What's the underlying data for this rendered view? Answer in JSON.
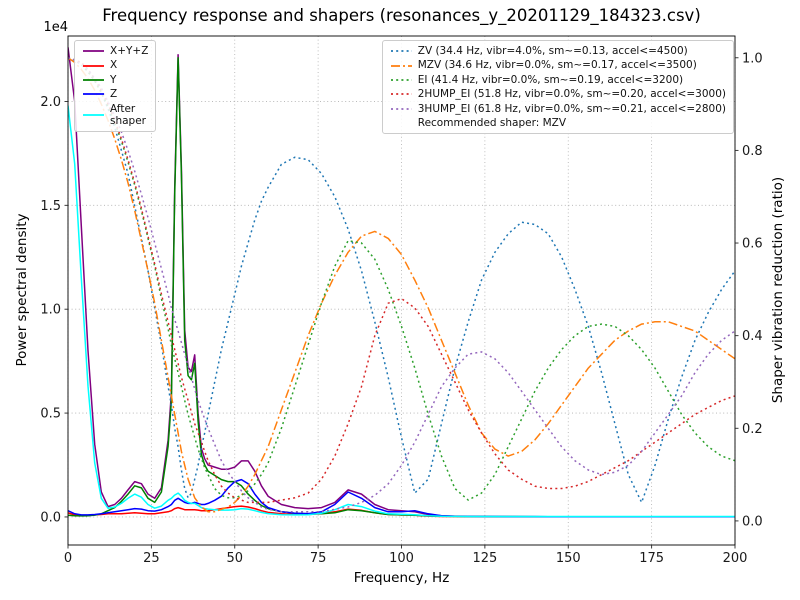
{
  "chart_data": {
    "type": "line",
    "title": "Frequency response and shapers (resonances_y_20201129_184323.csv)",
    "xlabel": "Frequency, Hz",
    "ylabel_left": "Power spectral density",
    "ylabel_right": "Shaper vibration reduction (ratio)",
    "y_left_offset": "1e4",
    "recommended_shaper": "MZV",
    "grid": true,
    "xlim": [
      0,
      200
    ],
    "ylim_left": [
      -1350,
      23150
    ],
    "ylim_right": [
      -0.052,
      1.047
    ],
    "x_ticks": [
      [
        0,
        "0"
      ],
      [
        25,
        "25"
      ],
      [
        50,
        "50"
      ],
      [
        75,
        "75"
      ],
      [
        100,
        "100"
      ],
      [
        125,
        "125"
      ],
      [
        150,
        "150"
      ],
      [
        175,
        "175"
      ],
      [
        200,
        "200"
      ]
    ],
    "y_left_ticks": [
      [
        0,
        "0.0"
      ],
      [
        5000,
        "0.5"
      ],
      [
        10000,
        "1.0"
      ],
      [
        15000,
        "1.5"
      ],
      [
        20000,
        "2.0"
      ]
    ],
    "y_right_ticks": [
      [
        0,
        "0.0"
      ],
      [
        0.2,
        "0.2"
      ],
      [
        0.4,
        "0.4"
      ],
      [
        0.6,
        "0.6"
      ],
      [
        0.8,
        "0.8"
      ],
      [
        1.0,
        "1.0"
      ]
    ],
    "x": [
      0,
      2,
      4,
      6,
      8,
      10,
      12,
      14,
      16,
      18,
      20,
      22,
      24,
      26,
      28,
      30,
      31,
      32,
      33,
      34,
      35,
      36,
      37,
      38,
      39,
      40,
      41,
      42,
      44,
      46,
      48,
      50,
      52,
      54,
      56,
      58,
      60,
      64,
      68,
      72,
      76,
      80,
      84,
      88,
      92,
      96,
      100,
      104,
      108,
      112,
      116,
      120,
      124,
      128,
      132,
      136,
      140,
      144,
      148,
      152,
      156,
      160,
      164,
      168,
      172,
      176,
      180,
      184,
      188,
      192,
      196,
      200
    ],
    "series": [
      {
        "name": "xyz",
        "label": "X+Y+Z",
        "color": "#800080",
        "dash": "solid",
        "axis": "left",
        "values": [
          22600,
          20000,
          14000,
          8000,
          3500,
          1200,
          500,
          600,
          900,
          1300,
          1700,
          1600,
          1100,
          900,
          1400,
          3700,
          6000,
          15800,
          22250,
          16800,
          9000,
          7200,
          7000,
          7800,
          5000,
          3300,
          2800,
          2500,
          2400,
          2300,
          2300,
          2400,
          2700,
          2700,
          2200,
          1500,
          1000,
          600,
          450,
          400,
          450,
          700,
          1300,
          1100,
          600,
          350,
          300,
          250,
          120,
          60,
          40,
          30,
          25,
          20,
          20,
          15,
          15,
          10,
          10,
          10,
          10,
          10,
          10,
          10,
          10,
          10,
          10,
          10,
          10,
          10,
          10,
          10
        ]
      },
      {
        "name": "x",
        "label": "X",
        "color": "#ff0000",
        "dash": "solid",
        "axis": "left",
        "values": [
          200,
          100,
          80,
          80,
          100,
          120,
          150,
          150,
          150,
          180,
          200,
          180,
          150,
          150,
          200,
          250,
          300,
          400,
          450,
          400,
          350,
          350,
          350,
          350,
          330,
          300,
          300,
          300,
          350,
          400,
          450,
          500,
          520,
          480,
          400,
          300,
          220,
          150,
          120,
          120,
          150,
          250,
          380,
          320,
          200,
          120,
          100,
          80,
          40,
          20,
          20,
          15,
          15,
          10,
          10,
          10,
          10,
          10,
          10,
          10,
          10,
          10,
          10,
          10,
          10,
          10,
          10,
          10,
          10,
          10,
          10,
          10
        ]
      },
      {
        "name": "y",
        "label": "Y",
        "color": "#008000",
        "dash": "solid",
        "axis": "left",
        "values": [
          80,
          60,
          50,
          60,
          90,
          150,
          300,
          450,
          750,
          1100,
          1500,
          1400,
          900,
          700,
          1200,
          3400,
          5600,
          15500,
          22100,
          16500,
          8500,
          6800,
          6600,
          7400,
          4600,
          3000,
          2500,
          2200,
          2000,
          1800,
          1700,
          1700,
          1500,
          1100,
          800,
          550,
          400,
          250,
          180,
          150,
          150,
          200,
          350,
          300,
          200,
          120,
          100,
          80,
          50,
          30,
          25,
          20,
          20,
          15,
          15,
          15,
          10,
          10,
          10,
          10,
          10,
          10,
          10,
          10,
          10,
          10,
          10,
          10,
          10,
          10,
          10,
          10
        ]
      },
      {
        "name": "z",
        "label": "Z",
        "color": "#0000ff",
        "dash": "solid",
        "axis": "left",
        "values": [
          300,
          150,
          100,
          100,
          120,
          150,
          200,
          250,
          300,
          350,
          400,
          380,
          300,
          280,
          350,
          500,
          600,
          800,
          900,
          800,
          700,
          650,
          650,
          700,
          650,
          600,
          600,
          650,
          800,
          1000,
          1400,
          1700,
          1800,
          1600,
          1100,
          700,
          450,
          250,
          180,
          160,
          250,
          600,
          1200,
          900,
          450,
          250,
          250,
          300,
          150,
          60,
          30,
          25,
          20,
          20,
          15,
          15,
          15,
          10,
          10,
          10,
          10,
          10,
          10,
          10,
          10,
          10,
          10,
          10,
          10,
          10,
          10,
          10
        ]
      },
      {
        "name": "after-shaper",
        "label": "After\nshaper",
        "color": "#00ffff",
        "dash": "solid",
        "axis": "left",
        "values": [
          19800,
          17000,
          11500,
          6300,
          2600,
          900,
          420,
          480,
          650,
          900,
          1100,
          950,
          600,
          420,
          520,
          800,
          900,
          1050,
          1150,
          1000,
          800,
          700,
          650,
          650,
          550,
          450,
          400,
          380,
          350,
          330,
          330,
          350,
          400,
          380,
          300,
          220,
          160,
          110,
          100,
          110,
          180,
          350,
          600,
          500,
          280,
          150,
          130,
          110,
          60,
          30,
          25,
          20,
          20,
          20,
          20,
          20,
          20,
          20,
          20,
          20,
          20,
          20,
          20,
          20,
          20,
          20,
          20,
          20,
          20,
          20,
          20,
          20
        ]
      },
      {
        "name": "shaper-zv",
        "label": "ZV (34.4 Hz, vibr=4.0%, sm~=0.13, accel<=4500)",
        "color": "#1f77b4",
        "dash": "dotted",
        "axis": "right",
        "values": [
          1.0,
          0.995,
          0.985,
          0.97,
          0.95,
          0.925,
          0.89,
          0.85,
          0.8,
          0.75,
          0.68,
          0.61,
          0.54,
          0.46,
          0.38,
          0.29,
          0.25,
          0.2,
          0.16,
          0.11,
          0.07,
          0.05,
          0.06,
          0.09,
          0.12,
          0.16,
          0.19,
          0.23,
          0.3,
          0.37,
          0.43,
          0.49,
          0.55,
          0.6,
          0.65,
          0.69,
          0.72,
          0.77,
          0.785,
          0.78,
          0.75,
          0.7,
          0.63,
          0.54,
          0.43,
          0.31,
          0.18,
          0.06,
          0.09,
          0.21,
          0.33,
          0.43,
          0.52,
          0.58,
          0.62,
          0.645,
          0.64,
          0.62,
          0.57,
          0.5,
          0.42,
          0.32,
          0.21,
          0.1,
          0.04,
          0.12,
          0.22,
          0.31,
          0.39,
          0.45,
          0.5,
          0.54
        ]
      },
      {
        "name": "shaper-mzv",
        "label": "MZV (34.6 Hz, vibr=0.0%, sm~=0.17, accel<=3500)",
        "color": "#ff7f0e",
        "dash": "dashdot",
        "axis": "right",
        "values": [
          1.0,
          0.99,
          0.975,
          0.955,
          0.93,
          0.9,
          0.865,
          0.825,
          0.78,
          0.73,
          0.67,
          0.605,
          0.54,
          0.47,
          0.39,
          0.31,
          0.27,
          0.23,
          0.19,
          0.15,
          0.12,
          0.09,
          0.07,
          0.05,
          0.04,
          0.03,
          0.025,
          0.02,
          0.02,
          0.025,
          0.03,
          0.04,
          0.055,
          0.075,
          0.1,
          0.13,
          0.16,
          0.24,
          0.32,
          0.4,
          0.47,
          0.53,
          0.58,
          0.615,
          0.625,
          0.61,
          0.575,
          0.52,
          0.46,
          0.39,
          0.32,
          0.25,
          0.19,
          0.155,
          0.14,
          0.15,
          0.175,
          0.21,
          0.25,
          0.29,
          0.33,
          0.36,
          0.39,
          0.41,
          0.425,
          0.43,
          0.43,
          0.42,
          0.41,
          0.39,
          0.37,
          0.35
        ]
      },
      {
        "name": "shaper-ei",
        "label": "EI (41.4 Hz, vibr=0.0%, sm~=0.19, accel<=3200)",
        "color": "#2ca02c",
        "dash": "dotted",
        "axis": "right",
        "values": [
          1.0,
          0.995,
          0.985,
          0.97,
          0.95,
          0.925,
          0.895,
          0.86,
          0.82,
          0.775,
          0.725,
          0.67,
          0.61,
          0.55,
          0.48,
          0.415,
          0.38,
          0.35,
          0.32,
          0.29,
          0.26,
          0.23,
          0.205,
          0.18,
          0.155,
          0.135,
          0.115,
          0.1,
          0.07,
          0.055,
          0.05,
          0.05,
          0.055,
          0.065,
          0.08,
          0.1,
          0.125,
          0.2,
          0.29,
          0.38,
          0.47,
          0.55,
          0.605,
          0.6,
          0.565,
          0.5,
          0.42,
          0.33,
          0.23,
          0.14,
          0.07,
          0.045,
          0.06,
          0.1,
          0.16,
          0.22,
          0.28,
          0.33,
          0.37,
          0.4,
          0.42,
          0.425,
          0.42,
          0.4,
          0.37,
          0.33,
          0.28,
          0.23,
          0.19,
          0.16,
          0.14,
          0.13
        ]
      },
      {
        "name": "shaper-2hump-ei",
        "label": "2HUMP_EI (51.8 Hz, vibr=0.0%, sm~=0.20, accel<=3000)",
        "color": "#d62728",
        "dash": "dotted",
        "axis": "right",
        "values": [
          1.0,
          0.995,
          0.99,
          0.975,
          0.955,
          0.93,
          0.9,
          0.865,
          0.825,
          0.78,
          0.73,
          0.675,
          0.615,
          0.555,
          0.49,
          0.43,
          0.4,
          0.37,
          0.34,
          0.31,
          0.285,
          0.26,
          0.235,
          0.21,
          0.19,
          0.17,
          0.15,
          0.13,
          0.1,
          0.075,
          0.06,
          0.05,
          0.045,
          0.04,
          0.04,
          0.04,
          0.04,
          0.045,
          0.05,
          0.06,
          0.09,
          0.14,
          0.21,
          0.29,
          0.4,
          0.47,
          0.48,
          0.46,
          0.42,
          0.36,
          0.3,
          0.24,
          0.19,
          0.145,
          0.11,
          0.09,
          0.075,
          0.07,
          0.07,
          0.075,
          0.085,
          0.1,
          0.115,
          0.13,
          0.15,
          0.17,
          0.19,
          0.21,
          0.23,
          0.245,
          0.26,
          0.27
        ]
      },
      {
        "name": "shaper-3hump-ei",
        "label": "3HUMP_EI (61.8 Hz, vibr=0.0%, sm~=0.21, accel<=2800)",
        "color": "#9467bd",
        "dash": "dotted",
        "axis": "right",
        "values": [
          1.0,
          0.995,
          0.985,
          0.975,
          0.955,
          0.935,
          0.905,
          0.875,
          0.84,
          0.8,
          0.755,
          0.705,
          0.655,
          0.6,
          0.545,
          0.49,
          0.46,
          0.435,
          0.41,
          0.385,
          0.36,
          0.335,
          0.31,
          0.285,
          0.26,
          0.24,
          0.22,
          0.2,
          0.165,
          0.13,
          0.105,
          0.085,
          0.065,
          0.05,
          0.04,
          0.03,
          0.025,
          0.02,
          0.02,
          0.02,
          0.02,
          0.025,
          0.03,
          0.04,
          0.055,
          0.08,
          0.12,
          0.17,
          0.23,
          0.29,
          0.33,
          0.36,
          0.365,
          0.35,
          0.32,
          0.28,
          0.24,
          0.2,
          0.16,
          0.13,
          0.11,
          0.1,
          0.105,
          0.12,
          0.15,
          0.19,
          0.23,
          0.27,
          0.32,
          0.36,
          0.39,
          0.41
        ]
      }
    ],
    "legend_left": {
      "series": [
        0,
        1,
        2,
        3,
        4
      ]
    },
    "legend_right": {
      "series": [
        5,
        6,
        7,
        8,
        9
      ],
      "note": "Recommended shaper: MZV"
    }
  }
}
